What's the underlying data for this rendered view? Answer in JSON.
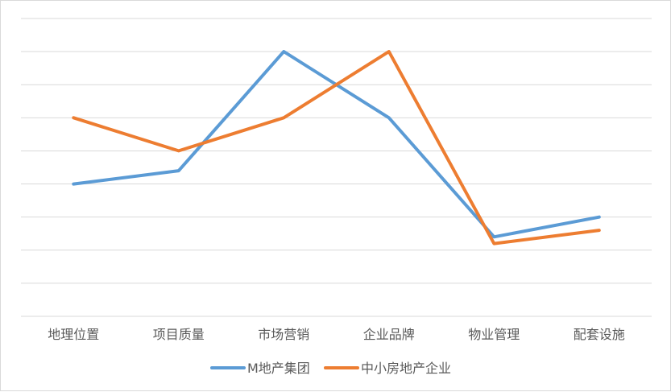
{
  "chart_data": {
    "type": "line",
    "categories": [
      "地理位置",
      "项目质量",
      "市场营销",
      "企业品牌",
      "物业管理",
      "配套设施"
    ],
    "ylim": [
      0,
      9
    ],
    "grid": true,
    "legend_position": "bottom",
    "series": [
      {
        "name": "M地产集团",
        "color": "#5b9bd5",
        "values": [
          4.0,
          4.4,
          8.0,
          6.0,
          2.4,
          3.0
        ]
      },
      {
        "name": "中小房地产企业",
        "color": "#ed7d31",
        "values": [
          6.0,
          5.0,
          6.0,
          8.0,
          2.2,
          2.6
        ]
      }
    ]
  }
}
